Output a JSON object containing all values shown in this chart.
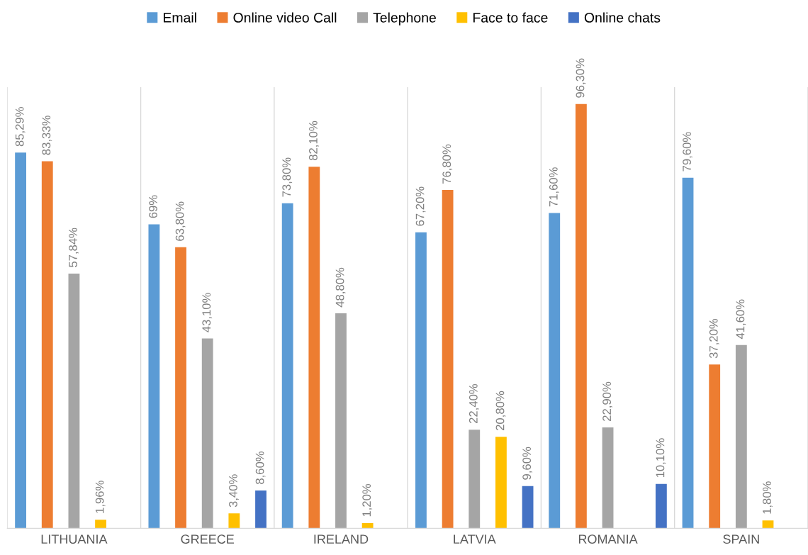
{
  "chart_data": {
    "type": "bar",
    "categories": [
      "LITHUANIA",
      "GREECE",
      "IRELAND",
      "LATVIA",
      "ROMANIA",
      "SPAIN"
    ],
    "series": [
      {
        "name": "Email",
        "color": "#5b9bd5",
        "values": [
          85.29,
          69,
          73.8,
          67.2,
          71.6,
          79.6
        ],
        "value_labels": [
          "85,29%",
          "69%",
          "73,80%",
          "67,20%",
          "71,60%",
          "79,60%"
        ]
      },
      {
        "name": "Online video Call",
        "color": "#ed7d31",
        "values": [
          83.33,
          63.8,
          82.1,
          76.8,
          96.3,
          37.2
        ],
        "value_labels": [
          "83,33%",
          "63,80%",
          "82,10%",
          "76,80%",
          "96,30%",
          "37,20%"
        ]
      },
      {
        "name": "Telephone",
        "color": "#a5a5a5",
        "values": [
          57.84,
          43.1,
          48.8,
          22.4,
          22.9,
          41.6
        ],
        "value_labels": [
          "57,84%",
          "43,10%",
          "48,80%",
          "22,40%",
          "22,90%",
          "41,60%"
        ]
      },
      {
        "name": "Face to face",
        "color": "#ffc000",
        "values": [
          1.96,
          3.4,
          1.2,
          20.8,
          null,
          1.8
        ],
        "value_labels": [
          "1,96%",
          "3,40%",
          "1,20%",
          "20,80%",
          null,
          "1,80%"
        ]
      },
      {
        "name": "Online chats",
        "color": "#4472c4",
        "values": [
          null,
          8.6,
          null,
          9.6,
          10.1,
          null
        ],
        "value_labels": [
          null,
          "8,60%",
          null,
          "9,60%",
          "10,10%",
          null
        ]
      }
    ],
    "legend": "top",
    "grid": "x"
  }
}
